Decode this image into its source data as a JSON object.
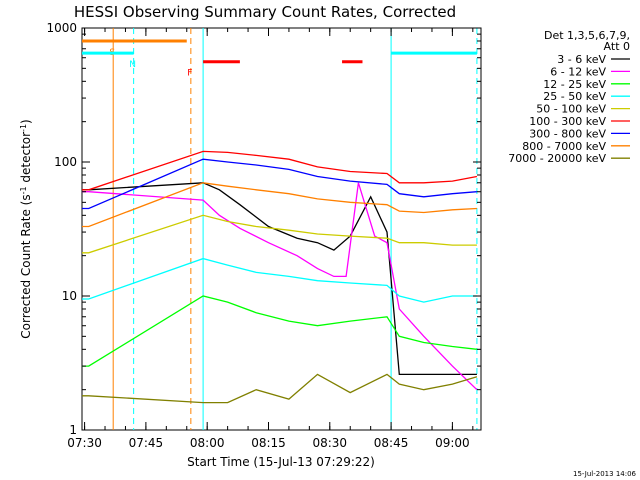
{
  "chart_data": {
    "type": "line",
    "title": "HESSI Observing Summary Count Rates, Corrected",
    "xlabel": "Start Time (15-Jul-13 07:29:22)",
    "ylabel": "Corrected Count Rate (s⁻¹ detector⁻¹)",
    "ylabel_main": "Corrected Count Rate (s",
    "ylabel_exp1": "-1",
    "ylabel_mid": " detector",
    "ylabel_exp2": "-1",
    "ylabel_end": ")",
    "yscale": "log",
    "xlim": [
      "07:29:22",
      "09:07:00"
    ],
    "ylim": [
      1,
      1000
    ],
    "x_ticks": [
      "07:30",
      "07:45",
      "08:00",
      "08:15",
      "08:30",
      "08:45",
      "09:00"
    ],
    "y_ticks": [
      1,
      10,
      100,
      1000
    ],
    "y_tick_labels": [
      "1",
      "10",
      "100",
      "1000"
    ],
    "legend_header": [
      "Det 1,3,5,6,7,9,",
      "Att 0"
    ],
    "timestamp": "15-Jul-2013 14:06",
    "series": [
      {
        "name": "3 - 6 keV",
        "color": "#000000",
        "x": [
          "07:29:22",
          "07:31",
          "07:59",
          "08:03",
          "08:08",
          "08:15",
          "08:22",
          "08:27",
          "08:31",
          "08:35",
          "08:40",
          "08:44",
          "08:47",
          "08:53",
          "09:00",
          "09:06"
        ],
        "values": [
          62,
          62,
          70,
          62,
          48,
          33,
          27,
          25,
          22,
          28,
          55,
          30,
          2.6,
          2.6,
          2.6,
          2.6
        ]
      },
      {
        "name": "6 - 12 keV",
        "color": "#ff00ff",
        "x": [
          "07:29:22",
          "07:31",
          "07:59",
          "08:03",
          "08:08",
          "08:15",
          "08:22",
          "08:27",
          "08:31",
          "08:34",
          "08:37",
          "08:41",
          "08:44",
          "08:47",
          "08:53",
          "09:00",
          "09:06"
        ],
        "values": [
          60,
          60,
          52,
          40,
          32,
          25,
          20,
          16,
          14,
          14,
          70,
          28,
          25,
          8,
          5,
          3,
          2
        ]
      },
      {
        "name": "12 - 25 keV",
        "color": "#00ff00",
        "x": [
          "07:29:22",
          "07:31",
          "07:59",
          "08:05",
          "08:12",
          "08:20",
          "08:27",
          "08:35",
          "08:44",
          "08:47",
          "08:53",
          "09:00",
          "09:06"
        ],
        "values": [
          3,
          3,
          10,
          9,
          7.5,
          6.5,
          6,
          6.5,
          7,
          5,
          4.5,
          4.2,
          4
        ]
      },
      {
        "name": "25 - 50 keV",
        "color": "#00ffff",
        "x": [
          "07:29:22",
          "07:31",
          "07:59",
          "08:05",
          "08:12",
          "08:20",
          "08:27",
          "08:35",
          "08:44",
          "08:47",
          "08:53",
          "09:00",
          "09:06"
        ],
        "values": [
          9.5,
          9.5,
          19,
          17,
          15,
          14,
          13,
          12.5,
          12,
          10,
          9,
          10,
          10
        ]
      },
      {
        "name": "50 - 100 keV",
        "color": "#cccc00",
        "x": [
          "07:29:22",
          "07:31",
          "07:59",
          "08:05",
          "08:12",
          "08:20",
          "08:27",
          "08:35",
          "08:44",
          "08:47",
          "08:53",
          "09:00",
          "09:06"
        ],
        "values": [
          21,
          21,
          40,
          36,
          33,
          31,
          29,
          28,
          27,
          25,
          25,
          24,
          24
        ]
      },
      {
        "name": "100 - 300 keV",
        "color": "#ff0000",
        "x": [
          "07:29:22",
          "07:31",
          "07:59",
          "08:05",
          "08:12",
          "08:20",
          "08:27",
          "08:35",
          "08:44",
          "08:47",
          "08:53",
          "09:00",
          "09:06"
        ],
        "values": [
          62,
          62,
          120,
          118,
          112,
          105,
          92,
          85,
          82,
          70,
          70,
          72,
          78
        ]
      },
      {
        "name": "300 - 800 keV",
        "color": "#0000ff",
        "x": [
          "07:29:22",
          "07:31",
          "07:59",
          "08:05",
          "08:12",
          "08:20",
          "08:27",
          "08:35",
          "08:44",
          "08:47",
          "08:53",
          "09:00",
          "09:06"
        ],
        "values": [
          45,
          45,
          105,
          100,
          95,
          88,
          78,
          72,
          68,
          58,
          55,
          58,
          60
        ]
      },
      {
        "name": "800 - 7000 keV",
        "color": "#ff8000",
        "x": [
          "07:29:22",
          "07:31",
          "07:59",
          "08:05",
          "08:12",
          "08:20",
          "08:27",
          "08:35",
          "08:44",
          "08:47",
          "08:53",
          "09:00",
          "09:06"
        ],
        "values": [
          33,
          33,
          70,
          66,
          62,
          58,
          53,
          50,
          48,
          43,
          42,
          44,
          45
        ]
      },
      {
        "name": "7000 - 20000 keV",
        "color": "#808000",
        "x": [
          "07:29:22",
          "07:31",
          "07:59",
          "08:05",
          "08:12",
          "08:20",
          "08:27",
          "08:35",
          "08:44",
          "08:47",
          "08:53",
          "09:00",
          "09:06"
        ],
        "values": [
          1.8,
          1.8,
          1.6,
          1.6,
          2,
          1.7,
          2.6,
          1.9,
          2.6,
          2.2,
          2,
          2.2,
          2.5
        ]
      }
    ],
    "flags": [
      {
        "label": "S",
        "color": "#ff8000",
        "x": [
          "07:29:22",
          "07:37"
        ],
        "y": 800,
        "marker_x": "07:37"
      },
      {
        "label": "N",
        "color": "#00ffff",
        "x": [
          "07:29:22",
          "07:42"
        ],
        "y": 650,
        "marker_x": "07:42"
      },
      {
        "label": "F",
        "color": "#ff0000",
        "x": [
          "07:59",
          "08:08"
        ],
        "y": 560,
        "marker_x": "07:56"
      }
    ],
    "segments": [
      {
        "color": "#ff8000",
        "x": [
          "07:37",
          "07:55"
        ],
        "y": 800
      },
      {
        "color": "#ff0000",
        "x": [
          "08:33",
          "08:38"
        ],
        "y": 560
      },
      {
        "color": "#00ffff",
        "x": [
          "08:45",
          "09:06"
        ],
        "y": 650
      }
    ],
    "vlines": [
      {
        "x": "07:37",
        "color": "#ff8000",
        "style": "solid"
      },
      {
        "x": "07:42",
        "color": "#00ffff",
        "style": "dashed"
      },
      {
        "x": "07:56",
        "color": "#ff8000",
        "style": "dashed"
      },
      {
        "x": "07:59",
        "color": "#00ffff",
        "style": "solid"
      },
      {
        "x": "08:45",
        "color": "#00ffff",
        "style": "solid"
      },
      {
        "x": "09:06",
        "color": "#00ffff",
        "style": "dashed"
      }
    ]
  }
}
